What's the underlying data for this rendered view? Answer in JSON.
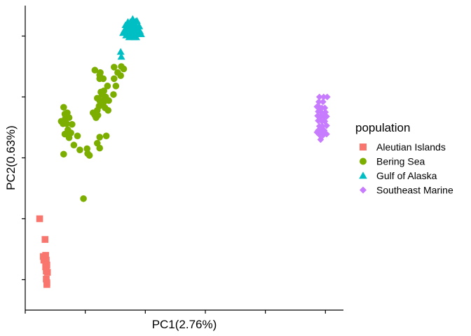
{
  "chart_data": {
    "type": "scatter",
    "xlabel": "PC1(2.76%)",
    "ylabel": "PC2(0.63%)",
    "tick_labels_shown": false,
    "x_ticks": [
      0.0,
      0.1,
      0.2,
      0.3,
      0.4,
      0.5
    ],
    "y_ticks": [
      0.1,
      0.2,
      0.3,
      0.4,
      0.5
    ],
    "xlim": [
      0.0,
      0.53
    ],
    "ylim": [
      0.05,
      0.55
    ],
    "grid": false,
    "legend_title": "population",
    "legend_position": "right",
    "series": [
      {
        "name": "Aleutian Islands",
        "color": "#F8766D",
        "shape": "square",
        "points": [
          [
            0.024,
            0.2
          ],
          [
            0.033,
            0.166
          ],
          [
            0.03,
            0.138
          ],
          [
            0.034,
            0.14
          ],
          [
            0.035,
            0.132
          ],
          [
            0.031,
            0.132
          ],
          [
            0.036,
            0.124
          ],
          [
            0.034,
            0.121
          ],
          [
            0.035,
            0.114
          ],
          [
            0.037,
            0.112
          ],
          [
            0.035,
            0.101
          ],
          [
            0.036,
            0.095
          ],
          [
            0.036,
            0.092
          ]
        ]
      },
      {
        "name": "Bering Sea",
        "color": "#7CAE00",
        "shape": "circle",
        "points": [
          [
            0.064,
            0.383
          ],
          [
            0.066,
            0.372
          ],
          [
            0.07,
            0.374
          ],
          [
            0.067,
            0.365
          ],
          [
            0.073,
            0.366
          ],
          [
            0.06,
            0.36
          ],
          [
            0.069,
            0.356
          ],
          [
            0.078,
            0.355
          ],
          [
            0.063,
            0.356
          ],
          [
            0.071,
            0.346
          ],
          [
            0.066,
            0.339
          ],
          [
            0.076,
            0.341
          ],
          [
            0.087,
            0.336
          ],
          [
            0.073,
            0.333
          ],
          [
            0.081,
            0.321
          ],
          [
            0.091,
            0.313
          ],
          [
            0.064,
            0.306
          ],
          [
            0.103,
            0.315
          ],
          [
            0.124,
            0.316
          ],
          [
            0.107,
            0.304
          ],
          [
            0.104,
            0.307
          ],
          [
            0.12,
            0.324
          ],
          [
            0.124,
            0.334
          ],
          [
            0.135,
            0.336
          ],
          [
            0.116,
            0.37
          ],
          [
            0.113,
            0.374
          ],
          [
            0.12,
            0.378
          ],
          [
            0.121,
            0.37
          ],
          [
            0.118,
            0.366
          ],
          [
            0.123,
            0.385
          ],
          [
            0.13,
            0.39
          ],
          [
            0.133,
            0.382
          ],
          [
            0.124,
            0.394
          ],
          [
            0.133,
            0.397
          ],
          [
            0.128,
            0.404
          ],
          [
            0.134,
            0.4
          ],
          [
            0.139,
            0.394
          ],
          [
            0.126,
            0.408
          ],
          [
            0.137,
            0.418
          ],
          [
            0.13,
            0.43
          ],
          [
            0.124,
            0.436
          ],
          [
            0.125,
            0.44
          ],
          [
            0.116,
            0.444
          ],
          [
            0.124,
            0.43
          ],
          [
            0.131,
            0.41
          ],
          [
            0.154,
            0.44
          ],
          [
            0.16,
            0.45
          ],
          [
            0.148,
            0.449
          ],
          [
            0.164,
            0.446
          ],
          [
            0.159,
            0.435
          ],
          [
            0.151,
            0.418
          ],
          [
            0.147,
            0.404
          ],
          [
            0.138,
            0.378
          ],
          [
            0.097,
            0.233
          ],
          [
            0.148,
            0.43
          ],
          [
            0.12,
            0.398
          ]
        ]
      },
      {
        "name": "Gulf of Alaska",
        "color": "#00BFC4",
        "shape": "triangle",
        "points": [
          [
            0.159,
            0.474
          ],
          [
            0.16,
            0.466
          ],
          [
            0.163,
            0.505
          ],
          [
            0.168,
            0.501
          ],
          [
            0.167,
            0.518
          ],
          [
            0.168,
            0.511
          ],
          [
            0.17,
            0.503
          ],
          [
            0.171,
            0.517
          ],
          [
            0.173,
            0.511
          ],
          [
            0.174,
            0.503
          ],
          [
            0.175,
            0.523
          ],
          [
            0.176,
            0.514
          ],
          [
            0.177,
            0.507
          ],
          [
            0.178,
            0.516
          ],
          [
            0.179,
            0.522
          ],
          [
            0.18,
            0.512
          ],
          [
            0.18,
            0.504
          ],
          [
            0.182,
            0.519
          ],
          [
            0.183,
            0.512
          ],
          [
            0.184,
            0.504
          ],
          [
            0.185,
            0.517
          ],
          [
            0.186,
            0.525
          ],
          [
            0.187,
            0.511
          ],
          [
            0.188,
            0.504
          ],
          [
            0.19,
            0.516
          ],
          [
            0.191,
            0.508
          ],
          [
            0.193,
            0.503
          ],
          [
            0.171,
            0.523
          ],
          [
            0.165,
            0.509
          ],
          [
            0.173,
            0.498
          ],
          [
            0.181,
            0.498
          ],
          [
            0.176,
            0.5
          ],
          [
            0.184,
            0.524
          ],
          [
            0.179,
            0.528
          ],
          [
            0.185,
            0.498
          ]
        ]
      },
      {
        "name": "Southeast Marine",
        "color": "#C77CFF",
        "shape": "diamond",
        "points": [
          [
            0.49,
            0.4
          ],
          [
            0.497,
            0.4
          ],
          [
            0.503,
            0.4
          ],
          [
            0.489,
            0.392
          ],
          [
            0.496,
            0.392
          ],
          [
            0.486,
            0.384
          ],
          [
            0.49,
            0.383
          ],
          [
            0.494,
            0.382
          ],
          [
            0.499,
            0.382
          ],
          [
            0.488,
            0.376
          ],
          [
            0.493,
            0.375
          ],
          [
            0.5,
            0.375
          ],
          [
            0.487,
            0.369
          ],
          [
            0.492,
            0.368
          ],
          [
            0.497,
            0.368
          ],
          [
            0.502,
            0.368
          ],
          [
            0.488,
            0.361
          ],
          [
            0.494,
            0.36
          ],
          [
            0.499,
            0.36
          ],
          [
            0.49,
            0.352
          ],
          [
            0.495,
            0.352
          ],
          [
            0.502,
            0.353
          ],
          [
            0.488,
            0.345
          ],
          [
            0.493,
            0.344
          ],
          [
            0.498,
            0.345
          ],
          [
            0.49,
            0.338
          ],
          [
            0.496,
            0.337
          ],
          [
            0.502,
            0.339
          ],
          [
            0.486,
            0.342
          ],
          [
            0.492,
            0.33
          ]
        ]
      }
    ]
  }
}
